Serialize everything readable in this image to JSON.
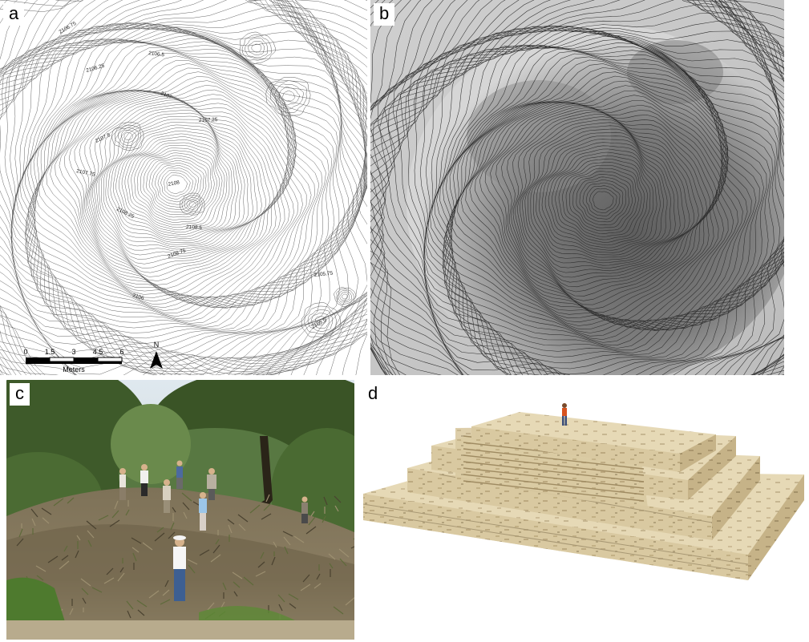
{
  "panels": {
    "a": {
      "letter": "a",
      "scale": {
        "ticks": [
          "0",
          "1.5",
          "3",
          "4.5",
          "6"
        ],
        "unit": "Meters"
      },
      "north": "N",
      "north_icon": "north-arrow-icon",
      "elevation_labels": [
        "2106.75",
        "2106.5",
        "2106.25",
        "2107",
        "2107.25",
        "2107.5",
        "2107.75",
        "2108",
        "2108.25",
        "2108.5",
        "2108.75",
        "2106",
        "2105.75",
        "2105.5"
      ]
    },
    "b": {
      "letter": "b"
    },
    "c": {
      "letter": "c"
    },
    "d": {
      "letter": "d"
    }
  }
}
